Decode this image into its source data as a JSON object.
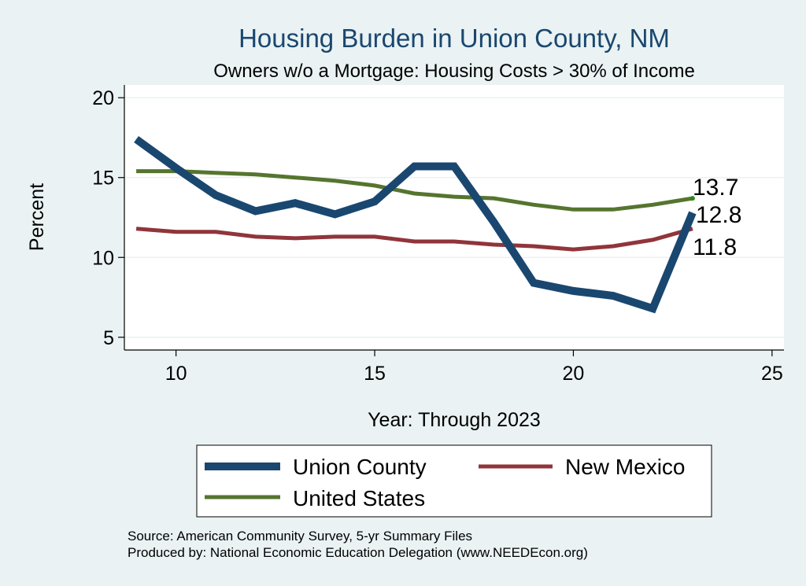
{
  "chart_data": {
    "type": "line",
    "title": "Housing Burden in Union County, NM",
    "subtitle": "Owners w/o a Mortgage: Housing Costs > 30% of Income",
    "xlabel": "Year: Through 2023",
    "ylabel": "Percent",
    "xlim": [
      8.7,
      25.3
    ],
    "ylim": [
      4.2,
      20.8
    ],
    "xticks": [
      10,
      15,
      20,
      25
    ],
    "yticks": [
      5,
      10,
      15,
      20
    ],
    "grid": true,
    "legend_position": "bottom",
    "x": [
      9,
      10,
      11,
      12,
      13,
      14,
      15,
      16,
      17,
      18,
      19,
      20,
      21,
      22,
      23
    ],
    "series": [
      {
        "name": "Union County",
        "color": "#1a476f",
        "values": [
          17.4,
          15.6,
          13.9,
          12.9,
          13.4,
          12.7,
          13.5,
          15.7,
          15.7,
          12.2,
          8.4,
          7.9,
          7.6,
          6.8,
          12.8
        ],
        "end_label": "12.8"
      },
      {
        "name": "New Mexico",
        "color": "#90353b",
        "values": [
          11.8,
          11.6,
          11.6,
          11.3,
          11.2,
          11.3,
          11.3,
          11.0,
          11.0,
          10.8,
          10.7,
          10.5,
          10.7,
          11.1,
          11.8
        ],
        "end_label": "11.8"
      },
      {
        "name": "United States",
        "color": "#55752f",
        "values": [
          15.4,
          15.4,
          15.3,
          15.2,
          15.0,
          14.8,
          14.5,
          14.0,
          13.8,
          13.7,
          13.3,
          13.0,
          13.0,
          13.3,
          13.7
        ],
        "end_label": "13.7"
      }
    ]
  },
  "notes": {
    "source": "Source: American Community Survey, 5-yr Summary Files",
    "produced": "Produced by: National Economic Education Delegation (www.NEEDEcon.org)"
  }
}
